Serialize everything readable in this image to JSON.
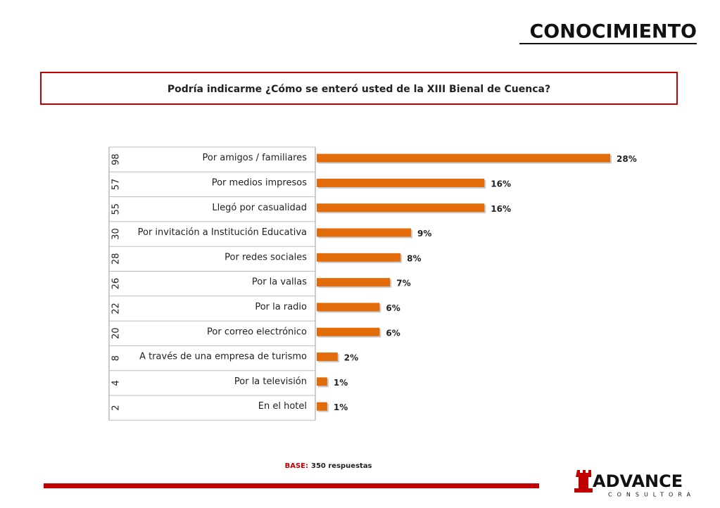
{
  "header": {
    "title": "CONOCIMIENTO"
  },
  "chart_data": {
    "type": "bar",
    "orientation": "horizontal",
    "subtitle": "Podría indicarme ¿Cómo se enteró usted de la XIII Bienal de Cuenca?",
    "categories": [
      "Por amigos / familiares",
      "Por medios impresos",
      "Llegó por casualidad",
      "Por invitación a Institución Educativa",
      "Por redes sociales",
      "Por la vallas",
      "Por la radio",
      "Por correo electrónico",
      "A través de una empresa de turismo",
      "Por la televisión",
      "En el hotel"
    ],
    "counts": [
      98,
      57,
      55,
      30,
      28,
      26,
      22,
      20,
      8,
      4,
      2
    ],
    "values": [
      28,
      16,
      16,
      9,
      8,
      7,
      6,
      6,
      2,
      1,
      1
    ],
    "value_labels": [
      "28%",
      "16%",
      "16%",
      "9%",
      "8%",
      "7%",
      "6%",
      "6%",
      "2%",
      "1%",
      "1%"
    ],
    "color": "#e36c0a"
  },
  "footer": {
    "base_label": "BASE:",
    "base_text": "350 respuestas",
    "logo": "ADVANCE",
    "logo_sub": "CONSULTORA"
  }
}
